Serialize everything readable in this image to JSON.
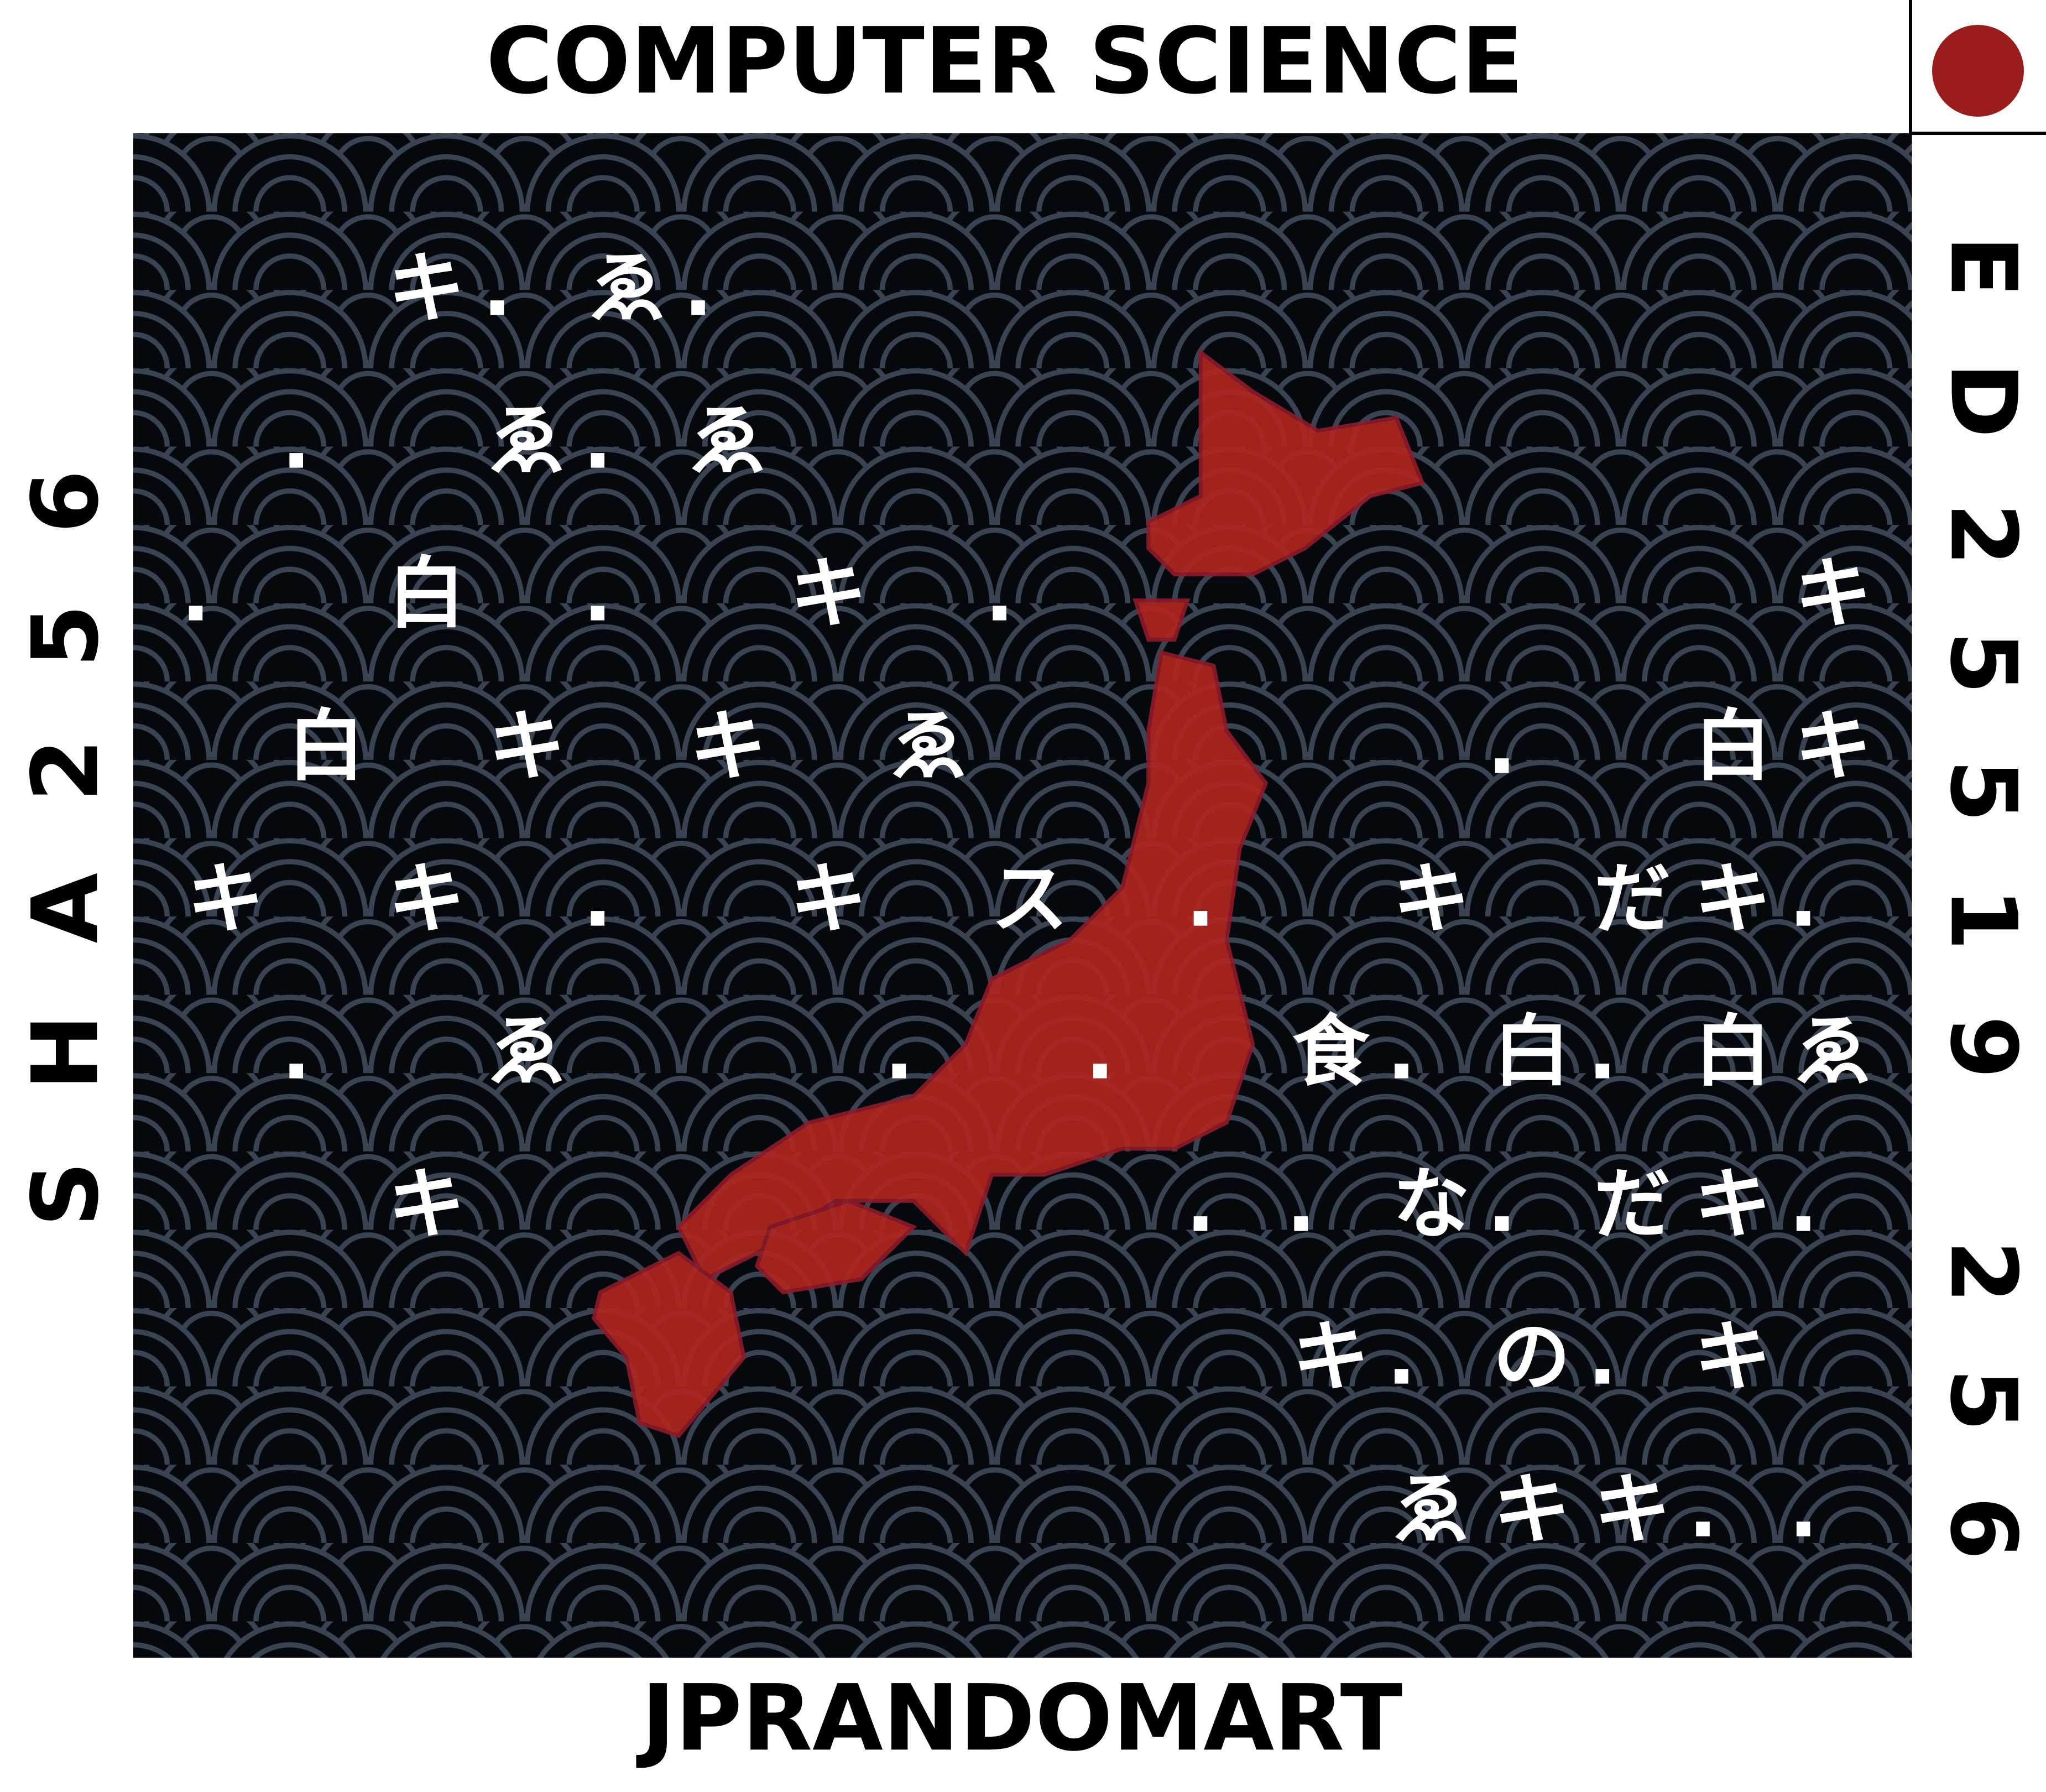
{
  "header": {
    "title": "COMPUTER SCIENCE"
  },
  "footer": {
    "label": "JPRANDOMART"
  },
  "left_label": "SHA256",
  "right_label": "ED25519 256",
  "grid": {
    "rows": [
      [
        null,
        null,
        "キ",
        ".",
        "ゑ",
        ".",
        null,
        null,
        null,
        null,
        null,
        null,
        null,
        null,
        null,
        null,
        null
      ],
      [
        null,
        ".",
        null,
        "ゑ",
        ".",
        "ゑ",
        null,
        null,
        null,
        null,
        null,
        null,
        null,
        null,
        null,
        null,
        null
      ],
      [
        ".",
        null,
        "白",
        null,
        ".",
        null,
        "キ",
        null,
        ".",
        null,
        null,
        null,
        null,
        null,
        null,
        null,
        "キ"
      ],
      [
        null,
        "白",
        null,
        "キ",
        null,
        "キ",
        null,
        "ゑ",
        null,
        null,
        null,
        null,
        null,
        ".",
        null,
        "白",
        "キ"
      ],
      [
        "キ",
        null,
        "キ",
        null,
        ".",
        null,
        "キ",
        null,
        "ス",
        null,
        ".",
        null,
        "キ",
        null,
        "だ",
        "キ",
        "."
      ],
      [
        null,
        ".",
        null,
        "ゑ",
        null,
        null,
        null,
        ".",
        null,
        ".",
        null,
        "食",
        ".",
        "白",
        ".",
        "白",
        "ゑ"
      ],
      [
        null,
        null,
        "キ",
        null,
        null,
        null,
        null,
        null,
        null,
        null,
        ".",
        ".",
        "な",
        ".",
        "だ",
        "キ",
        "."
      ],
      [
        null,
        null,
        null,
        null,
        null,
        null,
        null,
        null,
        null,
        null,
        null,
        "キ",
        ".",
        "の",
        ".",
        "キ",
        null
      ],
      [
        null,
        null,
        null,
        null,
        null,
        null,
        null,
        null,
        null,
        null,
        null,
        null,
        "ゑ",
        "キ",
        "キ",
        ".",
        "."
      ]
    ]
  }
}
